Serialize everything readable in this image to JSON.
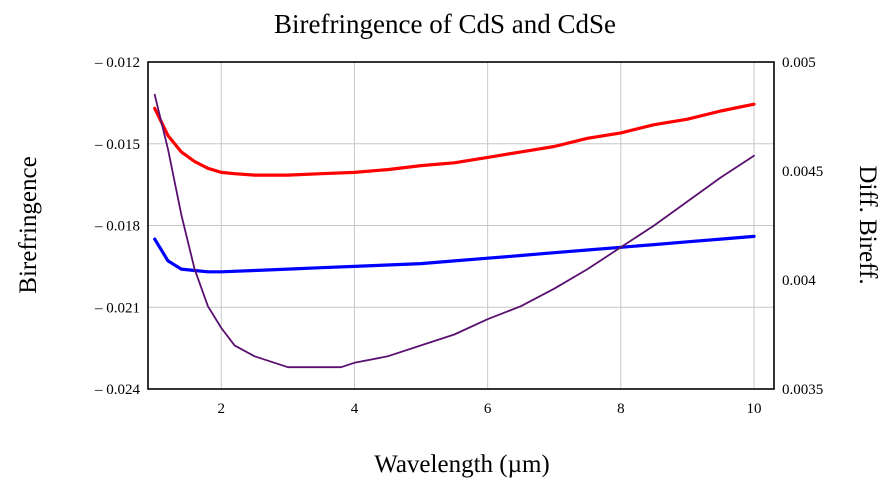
{
  "chart_data": {
    "type": "line",
    "title": "Birefringence of CdS  and CdSe",
    "xlabel": "Wavelength (µm)",
    "ylabel": "Birefringence",
    "y2label": "Diff. Bireff.",
    "xlim": [
      0.9,
      10.3
    ],
    "ylim": [
      -0.024,
      -0.012
    ],
    "y2lim": [
      0.0035,
      0.005
    ],
    "grid": true,
    "legend": "none",
    "x_ticks": [
      "2",
      "4",
      "6",
      "8",
      "10"
    ],
    "y_ticks": [
      "– 0.012",
      "– 0.015",
      "– 0.018",
      "– 0.021",
      "– 0.024"
    ],
    "y2_ticks": [
      "0.005",
      "0.0045",
      "0.004",
      "0.0035"
    ],
    "series": [
      {
        "axis": "left",
        "color": "#ff0000",
        "x": [
          1.0,
          1.2,
          1.4,
          1.6,
          1.8,
          2.0,
          2.2,
          2.5,
          3.0,
          3.5,
          4.0,
          4.5,
          5.0,
          5.5,
          6.0,
          6.5,
          7.0,
          7.5,
          8.0,
          8.5,
          9.0,
          9.5,
          10.0
        ],
        "y": [
          -0.0137,
          -0.0147,
          -0.0153,
          -0.01565,
          -0.0159,
          -0.01605,
          -0.0161,
          -0.01615,
          -0.01615,
          -0.0161,
          -0.01605,
          -0.01595,
          -0.0158,
          -0.0157,
          -0.0155,
          -0.0153,
          -0.0151,
          -0.0148,
          -0.0146,
          -0.0143,
          -0.0141,
          -0.0138,
          -0.01355
        ]
      },
      {
        "axis": "left",
        "color": "#0000ff",
        "x": [
          1.0,
          1.2,
          1.4,
          1.6,
          1.8,
          2.0,
          2.5,
          3.0,
          3.5,
          4.0,
          4.5,
          5.0,
          5.5,
          6.0,
          6.5,
          7.0,
          7.5,
          8.0,
          8.5,
          9.0,
          9.5,
          10.0
        ],
        "y": [
          -0.0185,
          -0.0193,
          -0.0196,
          -0.01965,
          -0.0197,
          -0.0197,
          -0.01965,
          -0.0196,
          -0.01955,
          -0.0195,
          -0.01945,
          -0.0194,
          -0.0193,
          -0.0192,
          -0.0191,
          -0.019,
          -0.0189,
          -0.0188,
          -0.0187,
          -0.0186,
          -0.0185,
          -0.0184
        ]
      },
      {
        "axis": "right",
        "color": "#5a1070",
        "x": [
          1.0,
          1.2,
          1.4,
          1.6,
          1.8,
          2.0,
          2.2,
          2.5,
          3.0,
          3.5,
          3.8,
          4.0,
          4.5,
          5.0,
          5.5,
          6.0,
          6.5,
          7.0,
          7.5,
          8.0,
          8.5,
          9.0,
          9.5,
          10.0
        ],
        "y": [
          0.00485,
          0.0046,
          0.0043,
          0.00405,
          0.00388,
          0.00378,
          0.0037,
          0.00365,
          0.0036,
          0.0036,
          0.0036,
          0.00362,
          0.00365,
          0.0037,
          0.00375,
          0.00382,
          0.00388,
          0.00396,
          0.00405,
          0.00415,
          0.00425,
          0.00436,
          0.00447,
          0.00457
        ]
      }
    ]
  }
}
